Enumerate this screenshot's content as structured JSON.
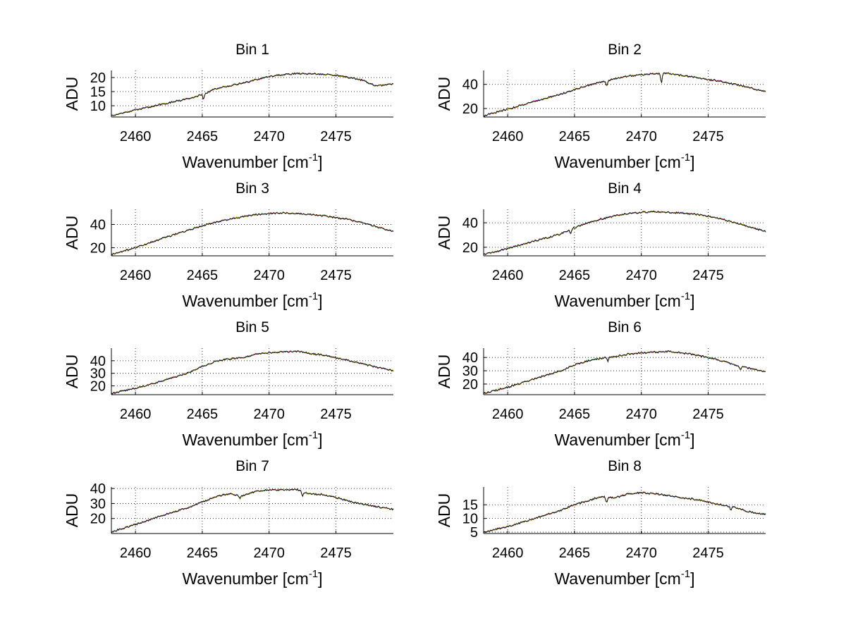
{
  "chart_data": [
    {
      "type": "line",
      "title": "Bin 1",
      "xlabel": "Wavenumber [cm",
      "xlabel_sup": "-1",
      "xlabel_end": "]",
      "ylabel": "ADU",
      "xlim": [
        2458.2,
        2479.3
      ],
      "ylim": [
        6.0,
        22.5
      ],
      "xticks": [
        2460,
        2465,
        2470,
        2475
      ],
      "yticks": [
        10,
        15,
        20
      ],
      "grid": true,
      "x": [
        2458.2,
        2460,
        2462,
        2464,
        2465.1,
        2466,
        2467,
        2468,
        2469,
        2470,
        2471,
        2472,
        2473,
        2474,
        2475,
        2476,
        2477,
        2478,
        2479.3
      ],
      "y": [
        6.5,
        8.5,
        10.5,
        12.5,
        14.2,
        16.0,
        17.0,
        18.0,
        19.2,
        20.3,
        21.0,
        21.4,
        21.3,
        21.2,
        20.8,
        20.0,
        19.0,
        17.0,
        17.7
      ],
      "dips": [
        [
          2465.1,
          2.0
        ]
      ]
    },
    {
      "type": "line",
      "title": "Bin 2",
      "xlabel": "Wavenumber [cm",
      "xlabel_sup": "-1",
      "xlabel_end": "]",
      "ylabel": "ADU",
      "xlim": [
        2458.2,
        2479.3
      ],
      "ylim": [
        13.0,
        51.5
      ],
      "xticks": [
        2460,
        2465,
        2470,
        2475
      ],
      "yticks": [
        20,
        40
      ],
      "grid": true,
      "x": [
        2458.2,
        2460,
        2462,
        2464,
        2465,
        2466,
        2467,
        2468,
        2469,
        2470,
        2471,
        2472,
        2473,
        2474,
        2475,
        2476,
        2477,
        2478,
        2479.3
      ],
      "y": [
        14.0,
        19.5,
        26.0,
        32.0,
        35.5,
        39.0,
        42.0,
        44.5,
        47.0,
        48.0,
        49.0,
        49.0,
        47.5,
        46.0,
        44.0,
        42.5,
        40.0,
        37.5,
        34.0
      ],
      "dips": [
        [
          2467.4,
          4.0
        ],
        [
          2471.5,
          8.0
        ]
      ]
    },
    {
      "type": "line",
      "title": "Bin 3",
      "xlabel": "Wavenumber [cm",
      "xlabel_sup": "-1",
      "xlabel_end": "]",
      "ylabel": "ADU",
      "xlim": [
        2458.2,
        2479.3
      ],
      "ylim": [
        13.0,
        53.0
      ],
      "xticks": [
        2460,
        2465,
        2470,
        2475
      ],
      "yticks": [
        20,
        40
      ],
      "grid": true,
      "x": [
        2458.2,
        2460,
        2462,
        2464,
        2465,
        2466,
        2467,
        2468,
        2469,
        2470,
        2471,
        2472,
        2473,
        2474,
        2475,
        2476,
        2477,
        2478,
        2479.3
      ],
      "y": [
        14.0,
        20.0,
        28.0,
        35.0,
        39.0,
        42.0,
        44.5,
        46.5,
        48.5,
        49.5,
        50.0,
        49.5,
        48.5,
        47.5,
        46.0,
        44.0,
        41.5,
        38.0,
        34.0
      ],
      "dips": []
    },
    {
      "type": "line",
      "title": "Bin 4",
      "xlabel": "Wavenumber [cm",
      "xlabel_sup": "-1",
      "xlabel_end": "]",
      "ylabel": "ADU",
      "xlim": [
        2458.2,
        2479.3
      ],
      "ylim": [
        13.0,
        51.0
      ],
      "xticks": [
        2460,
        2465,
        2470,
        2475
      ],
      "yticks": [
        20,
        40
      ],
      "grid": true,
      "x": [
        2458.2,
        2460,
        2462,
        2464,
        2465,
        2466,
        2467,
        2468,
        2469,
        2470,
        2471,
        2472,
        2473,
        2474,
        2475,
        2476,
        2477,
        2478,
        2479.3
      ],
      "y": [
        14.0,
        19.0,
        25.0,
        31.0,
        36.0,
        40.0,
        43.0,
        45.5,
        47.5,
        48.5,
        49.0,
        48.5,
        48.0,
        47.0,
        45.5,
        43.0,
        40.0,
        37.0,
        33.0
      ],
      "dips": [
        [
          2464.7,
          3.0
        ]
      ]
    },
    {
      "type": "line",
      "title": "Bin 5",
      "xlabel": "Wavenumber [cm",
      "xlabel_sup": "-1",
      "xlabel_end": "]",
      "ylabel": "ADU",
      "xlim": [
        2458.2,
        2479.3
      ],
      "ylim": [
        13.0,
        50.0
      ],
      "xticks": [
        2460,
        2465,
        2470,
        2475
      ],
      "yticks": [
        20,
        30,
        40
      ],
      "grid": true,
      "x": [
        2458.2,
        2460,
        2462,
        2464,
        2465,
        2466,
        2467,
        2468,
        2469,
        2470,
        2471,
        2472,
        2473,
        2474,
        2475,
        2476,
        2477,
        2478,
        2479.3
      ],
      "y": [
        14.0,
        18.0,
        24.0,
        30.5,
        35.5,
        39.5,
        41.5,
        42.5,
        45.0,
        46.5,
        47.0,
        47.5,
        46.0,
        44.5,
        42.5,
        40.0,
        37.5,
        35.0,
        32.0
      ],
      "dips": []
    },
    {
      "type": "line",
      "title": "Bin 6",
      "xlabel": "Wavenumber [cm",
      "xlabel_sup": "-1",
      "xlabel_end": "]",
      "ylabel": "ADU",
      "xlim": [
        2458.2,
        2479.3
      ],
      "ylim": [
        12.0,
        47.0
      ],
      "xticks": [
        2460,
        2465,
        2470,
        2475
      ],
      "yticks": [
        20,
        30,
        40
      ],
      "grid": true,
      "x": [
        2458.2,
        2460,
        2462,
        2464,
        2465,
        2466,
        2467,
        2468,
        2469,
        2470,
        2471,
        2472,
        2473,
        2474,
        2475,
        2476,
        2477,
        2478,
        2479.3
      ],
      "y": [
        13.0,
        17.5,
        24.0,
        30.0,
        34.5,
        37.5,
        39.5,
        40.5,
        42.5,
        43.5,
        44.0,
        44.5,
        43.5,
        42.0,
        40.0,
        37.5,
        34.5,
        32.0,
        29.5
      ],
      "dips": [
        [
          2467.5,
          2.5
        ],
        [
          2477.4,
          3.0
        ]
      ]
    },
    {
      "type": "line",
      "title": "Bin 7",
      "xlabel": "Wavenumber [cm",
      "xlabel_sup": "-1",
      "xlabel_end": "]",
      "ylabel": "ADU",
      "xlim": [
        2458.2,
        2479.3
      ],
      "ylim": [
        10.0,
        41.0
      ],
      "xticks": [
        2460,
        2465,
        2470,
        2475
      ],
      "yticks": [
        20,
        30,
        40
      ],
      "grid": true,
      "x": [
        2458.2,
        2460,
        2462,
        2464,
        2465,
        2466,
        2467,
        2468,
        2469,
        2470,
        2471,
        2472,
        2473,
        2474,
        2475,
        2476,
        2477,
        2478,
        2479.3
      ],
      "y": [
        11.0,
        16.0,
        22.0,
        27.5,
        31.0,
        34.5,
        36.5,
        35.0,
        38.0,
        39.0,
        39.0,
        39.5,
        36.5,
        36.0,
        34.0,
        31.5,
        29.5,
        28.0,
        26.0
      ],
      "dips": [
        [
          2467.8,
          2.0
        ],
        [
          2472.5,
          3.0
        ]
      ]
    },
    {
      "type": "line",
      "title": "Bin 8",
      "xlabel": "Wavenumber [cm",
      "xlabel_sup": "-1",
      "xlabel_end": "]",
      "ylabel": "ADU",
      "xlim": [
        2458.2,
        2479.3
      ],
      "ylim": [
        4.5,
        21.5
      ],
      "xticks": [
        2460,
        2465,
        2470,
        2475
      ],
      "yticks": [
        5,
        10,
        15
      ],
      "grid": true,
      "x": [
        2458.2,
        2460,
        2462,
        2464,
        2465,
        2466,
        2467,
        2468,
        2469,
        2470,
        2471,
        2472,
        2473,
        2474,
        2475,
        2476,
        2477,
        2478,
        2479.3
      ],
      "y": [
        5.0,
        7.0,
        10.0,
        13.0,
        15.0,
        16.5,
        18.0,
        17.5,
        19.0,
        19.5,
        19.0,
        18.5,
        17.5,
        17.0,
        16.0,
        15.0,
        14.0,
        12.5,
        11.5
      ],
      "dips": [
        [
          2467.4,
          2.0
        ],
        [
          2476.7,
          1.5
        ]
      ]
    }
  ],
  "series_colors": [
    "#0000ff",
    "#00aa00",
    "#ff0000",
    "#00bfbf",
    "#bf00bf",
    "#bfbf00",
    "#000000"
  ]
}
